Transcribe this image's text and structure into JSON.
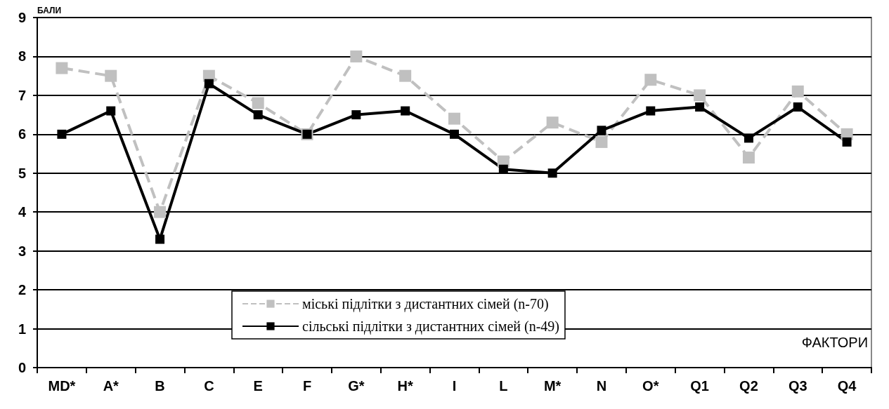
{
  "chart_data": {
    "type": "line",
    "xlabel": "ФАКТОРИ",
    "ylabel": "БАЛИ",
    "categories": [
      "MD*",
      "A*",
      "B",
      "C",
      "E",
      "F",
      "G*",
      "H*",
      "I",
      "L",
      "M*",
      "N",
      "O*",
      "Q1",
      "Q2",
      "Q3",
      "Q4"
    ],
    "series": [
      {
        "name": "міські підлітки з дистантних сімей (n-70)",
        "color": "#c0c0c0",
        "line_style": "dashed",
        "values": [
          7.7,
          7.5,
          4.0,
          7.5,
          6.8,
          6.0,
          8.0,
          7.5,
          6.4,
          5.3,
          6.3,
          5.8,
          7.4,
          7.0,
          5.4,
          7.1,
          6.0
        ]
      },
      {
        "name": "сільські підлітки з дистантних сімей (n-49)",
        "color": "#000000",
        "line_style": "solid",
        "values": [
          6.0,
          6.6,
          3.3,
          7.3,
          6.5,
          6.0,
          6.5,
          6.6,
          6.0,
          5.1,
          5.0,
          6.1,
          6.6,
          6.7,
          5.9,
          6.7,
          5.8
        ]
      }
    ],
    "ylim": [
      0,
      9
    ],
    "yticks": [
      0,
      1,
      2,
      3,
      4,
      5,
      6,
      7,
      8,
      9
    ],
    "grid": "y",
    "legend": "bottom",
    "marker": "square"
  }
}
